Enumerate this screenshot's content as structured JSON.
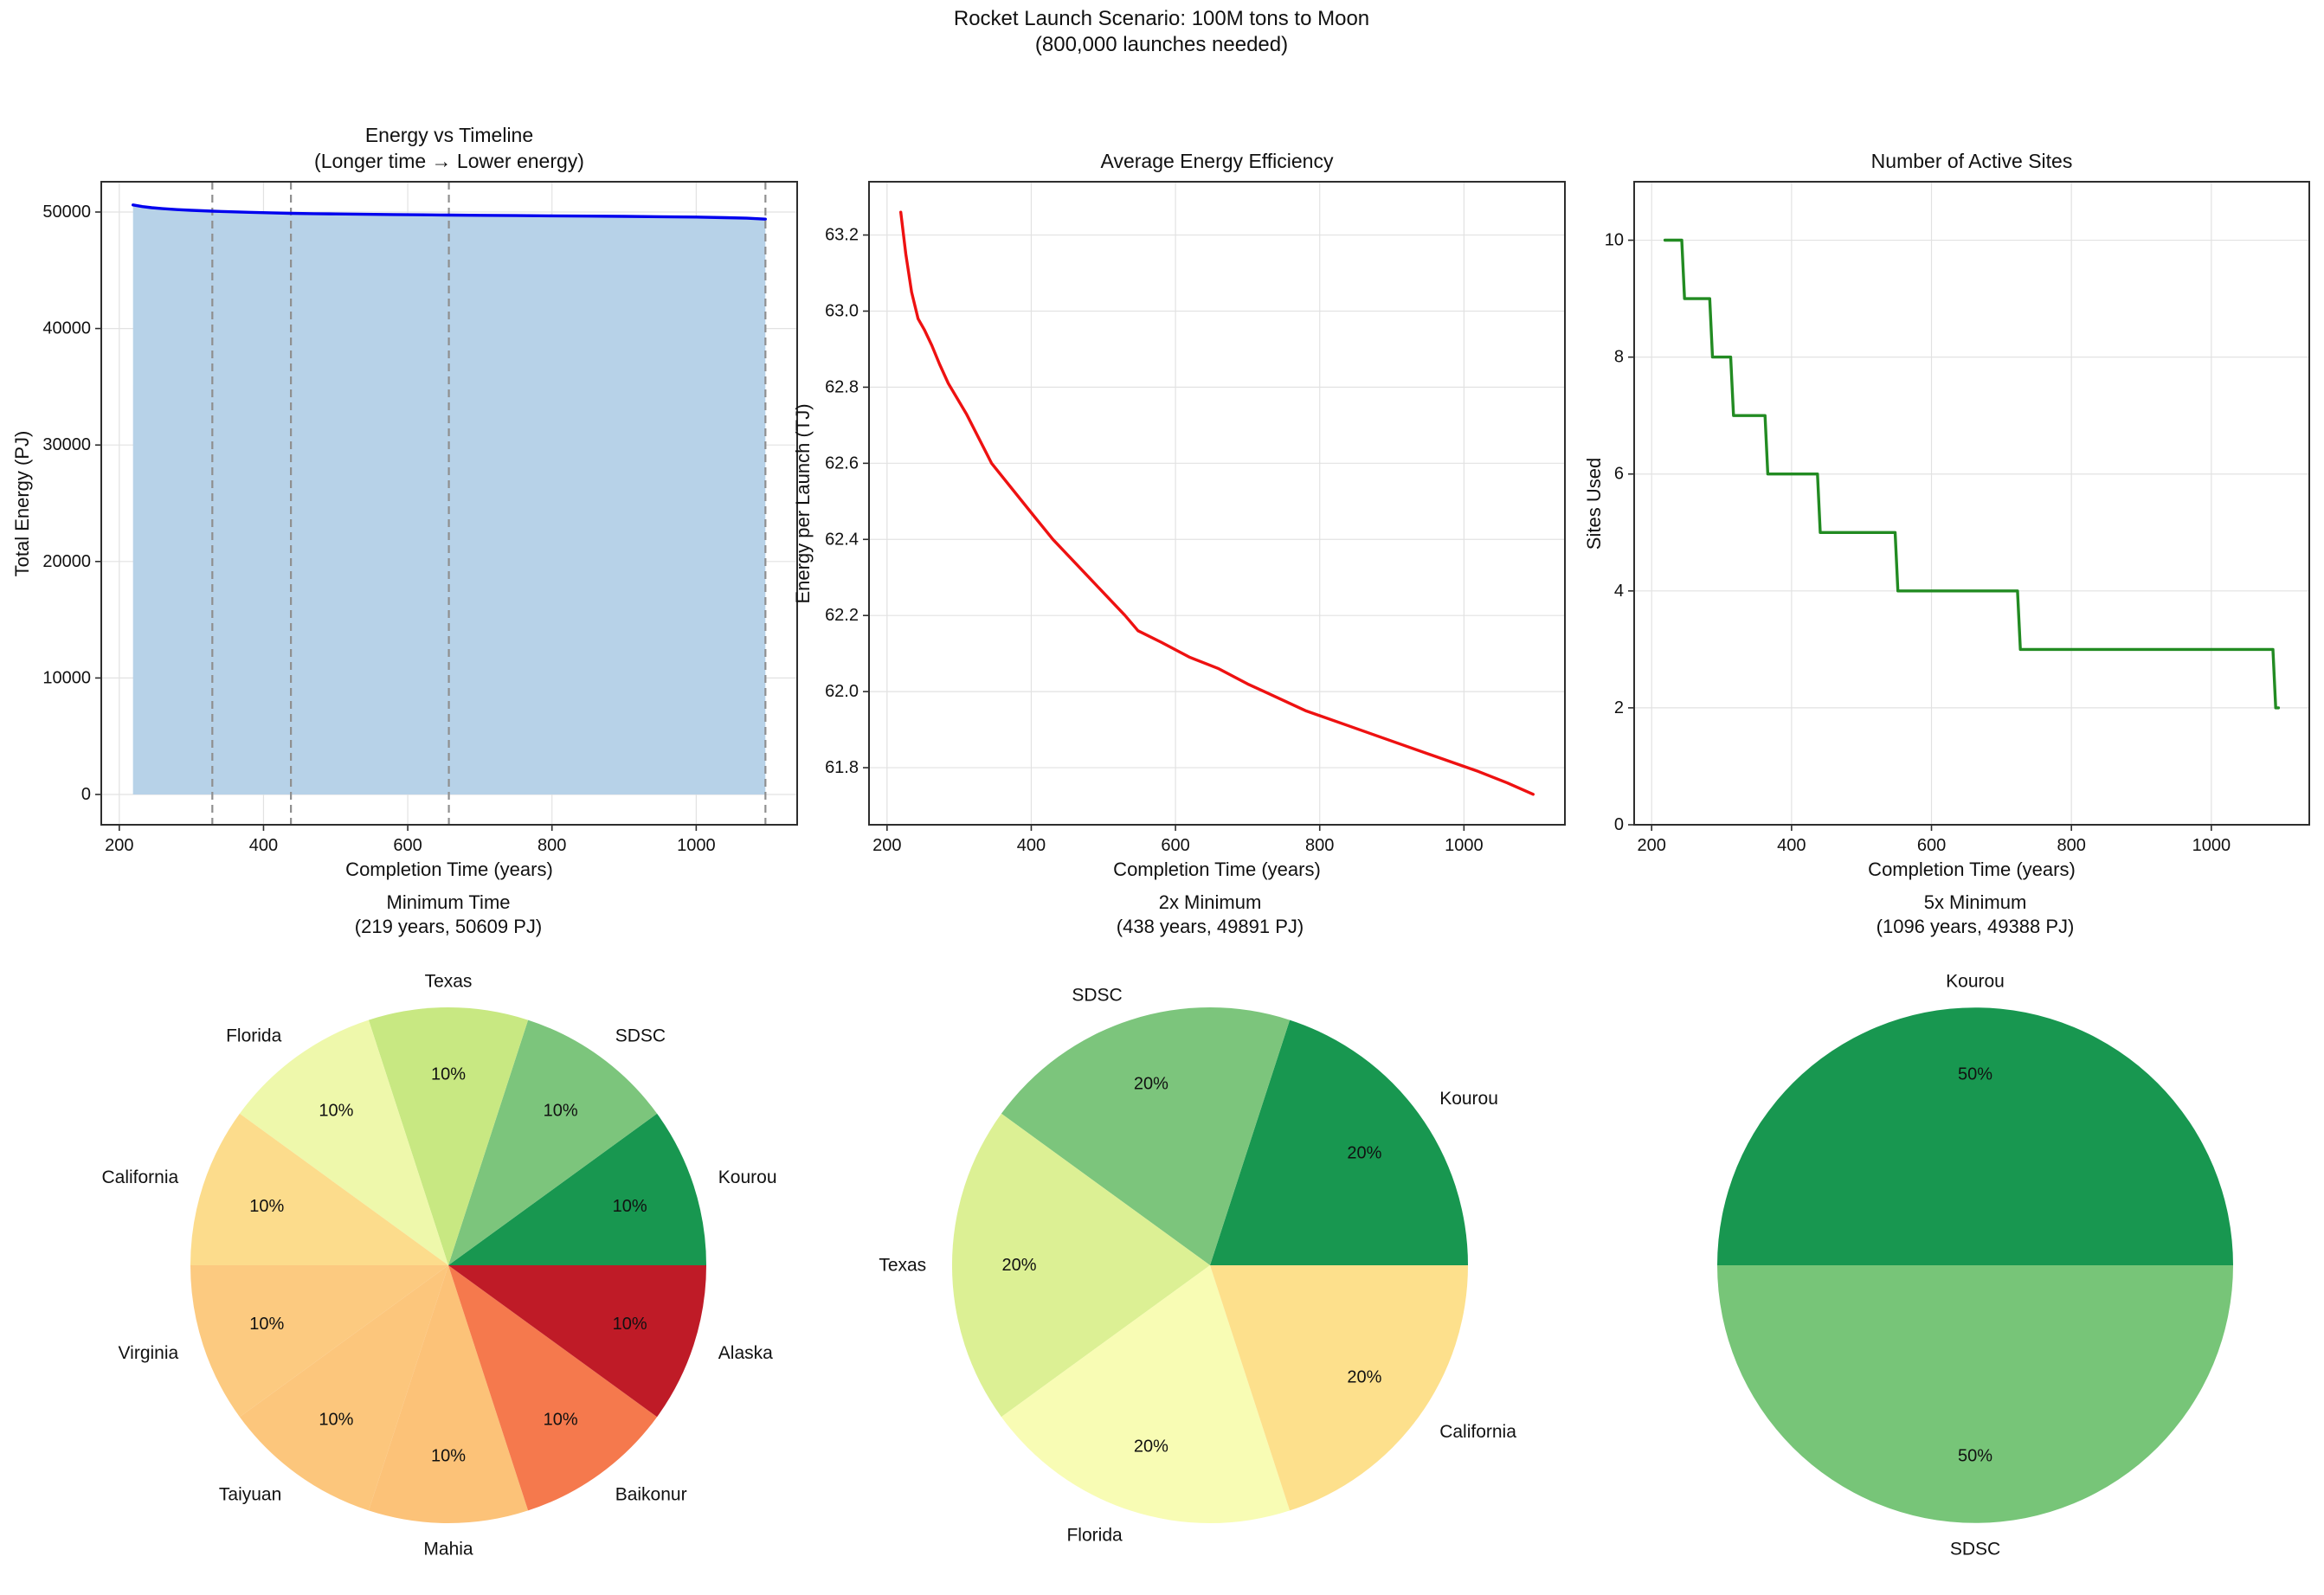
{
  "figure": {
    "title_line1": "Rocket Launch Scenario: 100M tons to Moon",
    "title_line2": "(800,000 launches needed)"
  },
  "chart_data": [
    {
      "id": "energy_vs_timeline",
      "type": "area",
      "title_line1": "Energy vs Timeline",
      "title_line2": "(Longer time → Lower energy)",
      "xlabel": "Completion Time (years)",
      "ylabel": "Total Energy (PJ)",
      "xlim": [
        175,
        1140
      ],
      "ylim": [
        -2600,
        52600
      ],
      "xtick_values": [
        200,
        400,
        600,
        800,
        1000
      ],
      "xtick_labels": [
        "200",
        "400",
        "600",
        "800",
        "1000"
      ],
      "ytick_values": [
        0,
        10000,
        20000,
        30000,
        40000,
        50000
      ],
      "ytick_labels": [
        "0",
        "10000",
        "20000",
        "30000",
        "40000",
        "50000"
      ],
      "grid": true,
      "line_color": "#0000ee",
      "fill_color": "#b7d2e8",
      "fill_baseline": 0,
      "vlines": {
        "x": [
          329,
          438,
          657,
          1096
        ],
        "color": "#8f8f8f",
        "style": "dashed"
      },
      "points": [
        [
          219,
          50609
        ],
        [
          232,
          50470
        ],
        [
          245,
          50370
        ],
        [
          260,
          50290
        ],
        [
          280,
          50210
        ],
        [
          300,
          50150
        ],
        [
          329,
          50075
        ],
        [
          355,
          50020
        ],
        [
          380,
          49975
        ],
        [
          410,
          49930
        ],
        [
          438,
          49891
        ],
        [
          470,
          49858
        ],
        [
          500,
          49833
        ],
        [
          540,
          49805
        ],
        [
          580,
          49782
        ],
        [
          620,
          49760
        ],
        [
          657,
          49740
        ],
        [
          700,
          49718
        ],
        [
          750,
          49694
        ],
        [
          800,
          49671
        ],
        [
          850,
          49649
        ],
        [
          900,
          49626
        ],
        [
          950,
          49600
        ],
        [
          1000,
          49566
        ],
        [
          1040,
          49520
        ],
        [
          1070,
          49470
        ],
        [
          1096,
          49388
        ]
      ]
    },
    {
      "id": "average_energy_efficiency",
      "type": "line",
      "title_line1": "Average Energy Efficiency",
      "xlabel": "Completion Time (years)",
      "ylabel": "Energy per Launch (TJ)",
      "xlim": [
        175,
        1140
      ],
      "ylim": [
        61.65,
        63.34
      ],
      "xtick_values": [
        200,
        400,
        600,
        800,
        1000
      ],
      "xtick_labels": [
        "200",
        "400",
        "600",
        "800",
        "1000"
      ],
      "ytick_values": [
        61.8,
        62.0,
        62.2,
        62.4,
        62.6,
        62.8,
        63.0,
        63.2
      ],
      "ytick_labels": [
        "61.8",
        "62.0",
        "62.2",
        "62.4",
        "62.6",
        "62.8",
        "63.0",
        "63.2"
      ],
      "grid": true,
      "line_color": "#ee1111",
      "points": [
        [
          219,
          63.26
        ],
        [
          226,
          63.15
        ],
        [
          234,
          63.05
        ],
        [
          243,
          62.98
        ],
        [
          252,
          62.95
        ],
        [
          262,
          62.91
        ],
        [
          273,
          62.86
        ],
        [
          285,
          62.81
        ],
        [
          310,
          62.73
        ],
        [
          345,
          62.6
        ],
        [
          400,
          62.47
        ],
        [
          430,
          62.4
        ],
        [
          480,
          62.3
        ],
        [
          530,
          62.2
        ],
        [
          548,
          62.16
        ],
        [
          580,
          62.13
        ],
        [
          620,
          62.09
        ],
        [
          660,
          62.06
        ],
        [
          700,
          62.02
        ],
        [
          723,
          62.0
        ],
        [
          780,
          61.95
        ],
        [
          840,
          61.91
        ],
        [
          900,
          61.87
        ],
        [
          960,
          61.83
        ],
        [
          1020,
          61.79
        ],
        [
          1060,
          61.76
        ],
        [
          1096,
          61.73
        ]
      ]
    },
    {
      "id": "number_of_active_sites",
      "type": "step",
      "title_line1": "Number of Active Sites",
      "xlabel": "Completion Time (years)",
      "ylabel": "Sites Used",
      "xlim": [
        175,
        1140
      ],
      "ylim": [
        0,
        11
      ],
      "xtick_values": [
        200,
        400,
        600,
        800,
        1000
      ],
      "xtick_labels": [
        "200",
        "400",
        "600",
        "800",
        "1000"
      ],
      "ytick_values": [
        0,
        2,
        4,
        6,
        8,
        10
      ],
      "ytick_labels": [
        "0",
        "2",
        "4",
        "6",
        "8",
        "10"
      ],
      "grid": true,
      "line_color": "#228b22",
      "points": [
        [
          219,
          10
        ],
        [
          243,
          10
        ],
        [
          247,
          9
        ],
        [
          283,
          9
        ],
        [
          287,
          8
        ],
        [
          313,
          8
        ],
        [
          317,
          7
        ],
        [
          362,
          7
        ],
        [
          366,
          6
        ],
        [
          437,
          6
        ],
        [
          441,
          5
        ],
        [
          548,
          5
        ],
        [
          552,
          4
        ],
        [
          723,
          4
        ],
        [
          727,
          3
        ],
        [
          1088,
          3
        ],
        [
          1092,
          2
        ],
        [
          1096,
          2
        ]
      ]
    },
    {
      "id": "pie_minimum_time",
      "type": "pie",
      "title_line1": "Minimum Time",
      "title_line2": "(219 years, 50609 PJ)",
      "start_angle": 0,
      "counterclockwise": true,
      "label_distance": 1.1,
      "pct_distance": 0.74,
      "slices": [
        {
          "label": "Kourou",
          "value": 10,
          "pct_label": "10%",
          "color": "#189750"
        },
        {
          "label": "SDSC",
          "value": 10,
          "pct_label": "10%",
          "color": "#7cc57c"
        },
        {
          "label": "Texas",
          "value": 10,
          "pct_label": "10%",
          "color": "#c8e882"
        },
        {
          "label": "Florida",
          "value": 10,
          "pct_label": "10%",
          "color": "#eef8ab"
        },
        {
          "label": "California",
          "value": 10,
          "pct_label": "10%",
          "color": "#fcdc8c"
        },
        {
          "label": "Virginia",
          "value": 10,
          "pct_label": "10%",
          "color": "#fcca80"
        },
        {
          "label": "Taiyuan",
          "value": 10,
          "pct_label": "10%",
          "color": "#fcc67c"
        },
        {
          "label": "Mahia",
          "value": 10,
          "pct_label": "10%",
          "color": "#fcc278"
        },
        {
          "label": "Baikonur",
          "value": 10,
          "pct_label": "10%",
          "color": "#f5794d"
        },
        {
          "label": "Alaska",
          "value": 10,
          "pct_label": "10%",
          "color": "#bf1b27"
        }
      ]
    },
    {
      "id": "pie_2x_minimum",
      "type": "pie",
      "title_line1": "2x Minimum",
      "title_line2": "(438 years, 49891 PJ)",
      "start_angle": 0,
      "counterclockwise": true,
      "label_distance": 1.1,
      "pct_distance": 0.74,
      "slices": [
        {
          "label": "Kourou",
          "value": 20,
          "pct_label": "20%",
          "color": "#189750"
        },
        {
          "label": "SDSC",
          "value": 20,
          "pct_label": "20%",
          "color": "#7cc57c"
        },
        {
          "label": "Texas",
          "value": 20,
          "pct_label": "20%",
          "color": "#dcf094"
        },
        {
          "label": "Florida",
          "value": 20,
          "pct_label": "20%",
          "color": "#f8fcb4"
        },
        {
          "label": "California",
          "value": 20,
          "pct_label": "20%",
          "color": "#fde08c"
        }
      ]
    },
    {
      "id": "pie_5x_minimum",
      "type": "pie",
      "title_line1": "5x Minimum",
      "title_line2": "(1096 years, 49388 PJ)",
      "start_angle": 0,
      "counterclockwise": true,
      "label_distance": 1.1,
      "pct_distance": 0.74,
      "slices": [
        {
          "label": "Kourou",
          "value": 50,
          "pct_label": "50%",
          "color": "#189750"
        },
        {
          "label": "SDSC",
          "value": 50,
          "pct_label": "50%",
          "color": "#77c578"
        }
      ]
    }
  ]
}
